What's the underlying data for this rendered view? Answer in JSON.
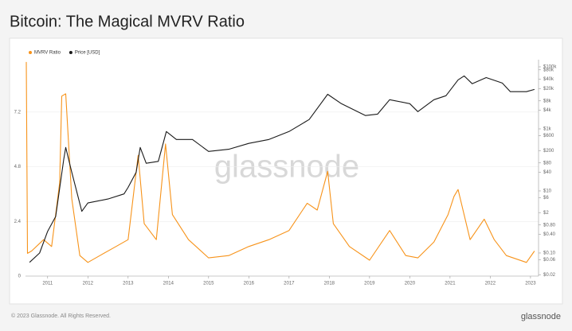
{
  "chart_data": {
    "type": "line",
    "title": "Bitcoin: The Magical MVRV Ratio",
    "watermark": "glassnode",
    "footer": "© 2023 Glassnode. All Rights Reserved.",
    "logo": "glassnode",
    "legend": "top-left",
    "grid": true,
    "y2log": true,
    "xlim": [
      2010.45,
      2023.2
    ],
    "xticks": [
      2011,
      2012,
      2013,
      2014,
      2015,
      2016,
      2017,
      2018,
      2019,
      2020,
      2021,
      2022,
      2023
    ],
    "ylim": [
      0,
      9.5
    ],
    "yticks": [
      0,
      2.4,
      4.8,
      7.2
    ],
    "y2lim": [
      0.018,
      170000
    ],
    "y2ticks": [
      {
        "value": 0.02,
        "label": "$0.02"
      },
      {
        "value": 0.06,
        "label": "$0.06"
      },
      {
        "value": 0.1,
        "label": "$0.10"
      },
      {
        "value": 0.4,
        "label": "$0.40"
      },
      {
        "value": 0.8,
        "label": "$0.80"
      },
      {
        "value": 2,
        "label": "$2"
      },
      {
        "value": 6,
        "label": "$6"
      },
      {
        "value": 10,
        "label": "$10"
      },
      {
        "value": 40,
        "label": "$40"
      },
      {
        "value": 80,
        "label": "$80"
      },
      {
        "value": 200,
        "label": "$200"
      },
      {
        "value": 600,
        "label": "$600"
      },
      {
        "value": 1000,
        "label": "$1k"
      },
      {
        "value": 4000,
        "label": "$4k"
      },
      {
        "value": 8000,
        "label": "$8k"
      },
      {
        "value": 20000,
        "label": "$20k"
      },
      {
        "value": 40000,
        "label": "$40k"
      },
      {
        "value": 80000,
        "label": "$80k"
      },
      {
        "value": 100000,
        "label": "$100k"
      }
    ],
    "series": [
      {
        "name": "MVRV Ratio",
        "color": "#f7931a",
        "x": [
          2010.47,
          2010.5,
          2010.6,
          2010.9,
          2011.1,
          2011.3,
          2011.35,
          2011.45,
          2011.6,
          2011.8,
          2012.0,
          2012.3,
          2012.7,
          2013.0,
          2013.25,
          2013.4,
          2013.7,
          2013.93,
          2014.1,
          2014.5,
          2015.0,
          2015.5,
          2016.0,
          2016.5,
          2017.0,
          2017.45,
          2017.7,
          2017.96,
          2018.1,
          2018.5,
          2019.0,
          2019.5,
          2019.9,
          2020.2,
          2020.6,
          2020.95,
          2021.1,
          2021.2,
          2021.5,
          2021.85,
          2022.1,
          2022.4,
          2022.9,
          2023.1
        ],
        "values": [
          9.4,
          1.0,
          1.1,
          1.6,
          1.3,
          4.1,
          7.9,
          8.0,
          3.4,
          0.9,
          0.6,
          0.9,
          1.3,
          1.6,
          5.3,
          2.3,
          1.6,
          5.8,
          2.7,
          1.6,
          0.8,
          0.9,
          1.3,
          1.6,
          2.0,
          3.2,
          2.9,
          4.6,
          2.3,
          1.3,
          0.7,
          2.0,
          0.9,
          0.8,
          1.5,
          2.7,
          3.5,
          3.8,
          1.6,
          2.5,
          1.6,
          0.9,
          0.6,
          1.1
        ]
      },
      {
        "name": "Price [USD]",
        "color": "#1a1a1a",
        "axis": "y2",
        "x": [
          2010.55,
          2010.8,
          2011.0,
          2011.2,
          2011.4,
          2011.45,
          2011.6,
          2011.85,
          2012.0,
          2012.5,
          2012.9,
          2013.0,
          2013.2,
          2013.3,
          2013.45,
          2013.75,
          2013.95,
          2014.2,
          2014.6,
          2015.0,
          2015.5,
          2016.0,
          2016.5,
          2017.0,
          2017.5,
          2017.96,
          2018.3,
          2018.9,
          2019.2,
          2019.5,
          2020.0,
          2020.2,
          2020.6,
          2020.9,
          2021.2,
          2021.35,
          2021.55,
          2021.9,
          2022.3,
          2022.5,
          2022.9,
          2023.1
        ],
        "values": [
          0.05,
          0.1,
          0.5,
          1.5,
          104,
          253,
          40,
          2.2,
          4.1,
          5.5,
          8,
          13,
          40,
          253,
          78,
          90,
          820,
          455,
          455,
          188,
          220,
          340,
          455,
          820,
          2000,
          13000,
          6500,
          2700,
          3000,
          8700,
          6500,
          3600,
          8700,
          11700,
          38000,
          51000,
          28500,
          45000,
          30000,
          15800,
          15800,
          18700
        ]
      }
    ]
  }
}
